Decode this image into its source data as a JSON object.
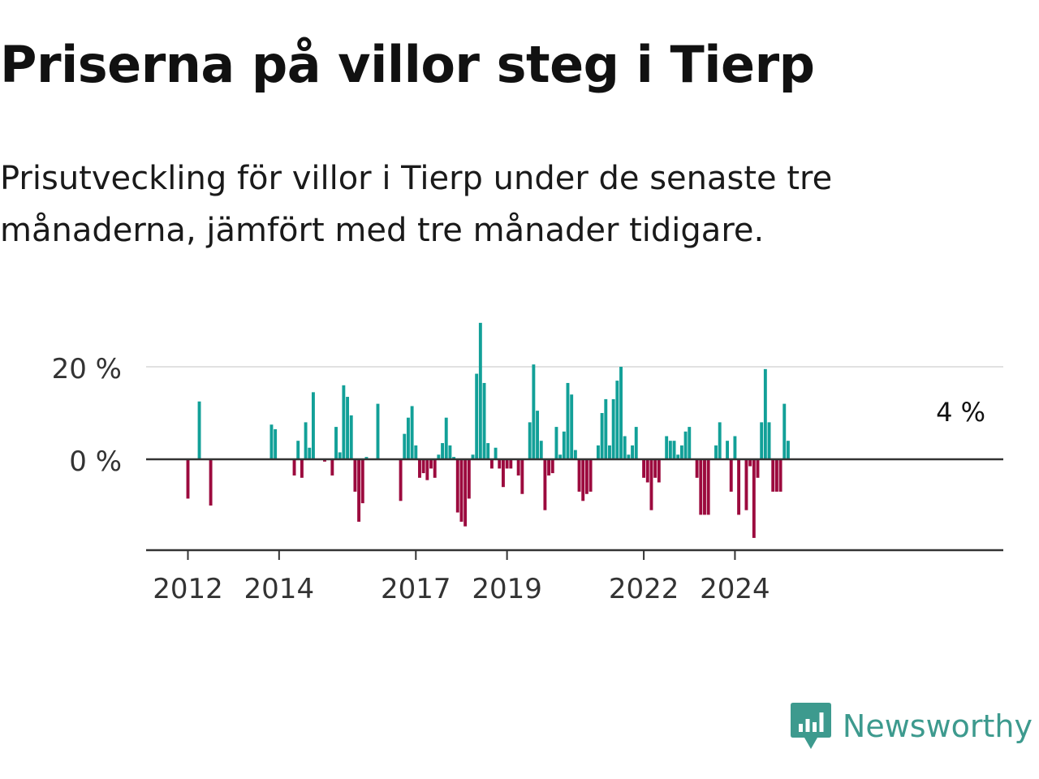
{
  "title": "Priserna på villor steg i Tierp",
  "subtitle": "Prisutveckling för villor i Tierp under de senaste tre månaderna, jämfört med tre månader tidigare.",
  "brand": {
    "name": "Newsworthy",
    "color": "#3d9a8e"
  },
  "colors": {
    "positive": "#12a098",
    "negative": "#9c0a3e",
    "gridline": "#e1e1e1",
    "axis": "#333333",
    "text": "#333333"
  },
  "chart_data": {
    "type": "bar",
    "title": "Priserna på villor steg i Tierp",
    "xlabel": "",
    "ylabel": "",
    "ylim": [
      -19,
      30
    ],
    "yticks": [
      {
        "value": 0,
        "label": "0 %"
      },
      {
        "value": 20,
        "label": "20 %"
      }
    ],
    "x_ticks": [
      {
        "index": 0,
        "label": "2012"
      },
      {
        "index": 24,
        "label": "2014"
      },
      {
        "index": 60,
        "label": "2017"
      },
      {
        "index": 84,
        "label": "2019"
      },
      {
        "index": 120,
        "label": "2022"
      },
      {
        "index": 144,
        "label": "2024"
      }
    ],
    "x_unit": "month index (0 = Jan 2012)",
    "last_label": "4 %",
    "values": [
      -8.5,
      0,
      0,
      12.5,
      0,
      0,
      -10,
      0,
      0,
      0,
      0,
      0,
      0,
      0,
      0,
      0,
      0,
      0,
      0,
      0,
      0,
      0,
      7.5,
      6.5,
      0,
      0,
      0,
      0,
      -3.5,
      4,
      -4,
      8,
      2.5,
      14.5,
      0,
      0,
      -0.5,
      0,
      -3.5,
      7,
      1.5,
      16,
      13.5,
      9.5,
      -7,
      -13.5,
      -9.5,
      0.5,
      0,
      0,
      12,
      0,
      0,
      0,
      0,
      0,
      -9,
      5.5,
      9,
      11.5,
      3,
      -4,
      -3,
      -4.5,
      -2,
      -4,
      1,
      3.5,
      9,
      3,
      0.5,
      -11.5,
      -13.5,
      -14.5,
      -8.5,
      1,
      18.5,
      29.5,
      16.5,
      3.5,
      -2,
      2.5,
      -2,
      -6,
      -2,
      -2,
      0,
      -3.5,
      -7.5,
      0,
      8,
      20.5,
      10.5,
      4,
      -11,
      -3.5,
      -3,
      7,
      1,
      6,
      16.5,
      14,
      2,
      -7,
      -9,
      -7.5,
      -7,
      0,
      3,
      10,
      13,
      3,
      13,
      17,
      20,
      5,
      1,
      3,
      7,
      0,
      -4,
      -5,
      -11,
      -4,
      -5,
      0,
      5,
      4,
      4,
      1,
      3,
      6,
      7,
      0,
      -4,
      -12,
      -12,
      -12,
      0,
      3,
      8,
      0,
      4,
      -7,
      5,
      -12,
      0,
      -11,
      -1.5,
      -17,
      -4,
      8,
      19.5,
      8,
      -7,
      -7,
      -7,
      12,
      4
    ]
  }
}
